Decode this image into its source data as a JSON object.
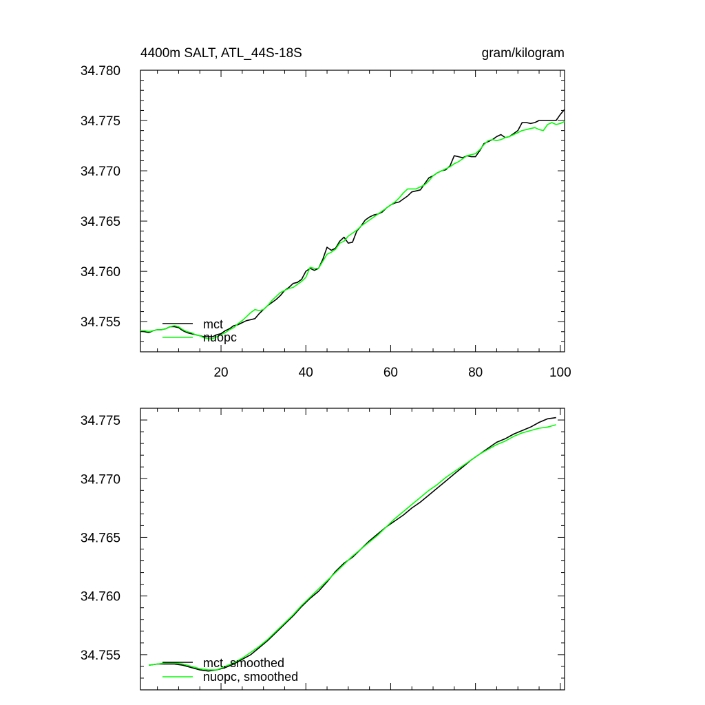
{
  "chart_data": [
    {
      "type": "line",
      "title": "4400m SALT, ATL_44S-18S",
      "units": "gram/kilogram",
      "xlim": [
        1,
        101
      ],
      "ylim": [
        34.752,
        34.78
      ],
      "xticks": [
        20,
        40,
        60,
        80,
        100
      ],
      "xtick_labels": [
        "20",
        "40",
        "60",
        "80",
        "100"
      ],
      "yticks": [
        34.755,
        34.76,
        34.765,
        34.77,
        34.775,
        34.78
      ],
      "ytick_labels": [
        "34.755",
        "34.760",
        "34.765",
        "34.770",
        "34.775",
        "34.780"
      ],
      "legend_location": "bottom-left",
      "x": [
        1,
        2,
        3,
        4,
        5,
        6,
        7,
        8,
        9,
        10,
        11,
        12,
        13,
        14,
        15,
        16,
        17,
        18,
        19,
        20,
        21,
        22,
        23,
        24,
        25,
        26,
        27,
        28,
        29,
        30,
        31,
        32,
        33,
        34,
        35,
        36,
        37,
        38,
        39,
        40,
        41,
        42,
        43,
        44,
        45,
        46,
        47,
        48,
        49,
        50,
        51,
        52,
        53,
        54,
        55,
        56,
        57,
        58,
        59,
        60,
        61,
        62,
        63,
        64,
        65,
        66,
        67,
        68,
        69,
        70,
        71,
        72,
        73,
        74,
        75,
        76,
        77,
        78,
        79,
        80,
        81,
        82,
        83,
        84,
        85,
        86,
        87,
        88,
        89,
        90,
        91,
        92,
        93,
        94,
        95,
        96,
        97,
        98,
        99,
        100,
        101
      ],
      "series": [
        {
          "name": "mct",
          "color": "#000000",
          "values": [
            34.7541,
            34.754,
            34.7539,
            34.7541,
            34.7542,
            34.7542,
            34.7543,
            34.7545,
            34.7545,
            34.7544,
            34.7541,
            34.7539,
            34.7538,
            34.7537,
            34.7536,
            34.7535,
            34.7535,
            34.7535,
            34.7537,
            34.7538,
            34.7541,
            34.7543,
            34.7546,
            34.7547,
            34.7549,
            34.7551,
            34.7552,
            34.7553,
            34.7558,
            34.7562,
            34.7566,
            34.7569,
            34.7572,
            34.7576,
            34.7581,
            34.7584,
            34.7588,
            34.7589,
            34.7592,
            34.76,
            34.7603,
            34.7601,
            34.7603,
            34.7612,
            34.7624,
            34.7621,
            34.7623,
            34.763,
            34.7634,
            34.7628,
            34.7629,
            34.764,
            34.7645,
            34.7651,
            34.7654,
            34.7656,
            34.7657,
            34.7659,
            34.7663,
            34.7666,
            34.7668,
            34.7669,
            34.7672,
            34.7675,
            34.7679,
            34.768,
            34.7681,
            34.7687,
            34.7693,
            34.7695,
            34.7698,
            34.77,
            34.7701,
            34.7705,
            34.7715,
            34.7714,
            34.7713,
            34.7715,
            34.7714,
            34.7714,
            34.772,
            34.7727,
            34.7729,
            34.7731,
            34.7734,
            34.7736,
            34.7733,
            34.7734,
            34.7737,
            34.774,
            34.7748,
            34.7748,
            34.7747,
            34.7748,
            34.775,
            34.775,
            34.775,
            34.775,
            34.775,
            34.7756,
            34.7761
          ]
        },
        {
          "name": "nuopc",
          "color": "#00ff00",
          "values": [
            34.7541,
            34.7541,
            34.754,
            34.7541,
            34.7542,
            34.7542,
            34.7543,
            34.7545,
            34.7546,
            34.7545,
            34.7542,
            34.754,
            34.7539,
            34.7537,
            34.7536,
            34.7534,
            34.7533,
            34.7533,
            34.7535,
            34.7537,
            34.7539,
            34.7542,
            34.7544,
            34.7548,
            34.7551,
            34.7555,
            34.7559,
            34.7562,
            34.7561,
            34.7562,
            34.7566,
            34.7571,
            34.7575,
            34.7579,
            34.7581,
            34.7583,
            34.7584,
            34.7587,
            34.759,
            34.7594,
            34.7604,
            34.7603,
            34.7603,
            34.761,
            34.7617,
            34.7619,
            34.7622,
            34.7628,
            34.763,
            34.7635,
            34.7638,
            34.7641,
            34.7645,
            34.7648,
            34.7651,
            34.7654,
            34.7657,
            34.766,
            34.7663,
            34.7666,
            34.7669,
            34.7673,
            34.7678,
            34.7682,
            34.7682,
            34.7682,
            34.7684,
            34.7686,
            34.769,
            34.7695,
            34.7698,
            34.77,
            34.7702,
            34.7704,
            34.7707,
            34.7709,
            34.7712,
            34.7715,
            34.7716,
            34.7717,
            34.7721,
            34.7726,
            34.773,
            34.7731,
            34.773,
            34.7731,
            34.7733,
            34.7734,
            34.7736,
            34.7738,
            34.774,
            34.7741,
            34.7742,
            34.7743,
            34.7741,
            34.774,
            34.7746,
            34.7748,
            34.7746,
            34.7747,
            34.7749
          ]
        }
      ]
    },
    {
      "type": "line",
      "xlim": [
        1,
        101
      ],
      "ylim": [
        34.752,
        34.776
      ],
      "xticks": [
        20,
        40,
        60,
        80,
        100
      ],
      "yticks": [
        34.755,
        34.76,
        34.765,
        34.77,
        34.775
      ],
      "ytick_labels": [
        "34.755",
        "34.760",
        "34.765",
        "34.770",
        "34.775"
      ],
      "legend_location": "bottom-left",
      "x": [
        3,
        5,
        7,
        9,
        11,
        13,
        15,
        17,
        19,
        21,
        23,
        25,
        27,
        29,
        31,
        33,
        35,
        37,
        39,
        41,
        43,
        45,
        47,
        49,
        51,
        53,
        55,
        57,
        59,
        61,
        63,
        65,
        67,
        69,
        71,
        73,
        75,
        77,
        79,
        81,
        83,
        85,
        87,
        89,
        91,
        93,
        95,
        97,
        99
      ],
      "series": [
        {
          "name": "mct, smoothed",
          "color": "#000000",
          "values": [
            34.7541,
            34.7542,
            34.7542,
            34.7542,
            34.7541,
            34.7539,
            34.7537,
            34.7536,
            34.7537,
            34.7539,
            34.7542,
            34.7546,
            34.755,
            34.7556,
            34.7562,
            34.7569,
            34.7576,
            34.7583,
            34.7591,
            34.7598,
            34.7604,
            34.7612,
            34.7621,
            34.7628,
            34.7633,
            34.764,
            34.7647,
            34.7653,
            34.7659,
            34.7664,
            34.7669,
            34.7675,
            34.768,
            34.7686,
            34.7692,
            34.7698,
            34.7704,
            34.771,
            34.7716,
            34.7721,
            34.7726,
            34.7731,
            34.7734,
            34.7738,
            34.7741,
            34.7744,
            34.7748,
            34.7751,
            34.7752
          ]
        },
        {
          "name": "nuopc, smoothed",
          "color": "#00ff00",
          "values": [
            34.7541,
            34.7542,
            34.7543,
            34.7543,
            34.7542,
            34.754,
            34.7538,
            34.7537,
            34.7537,
            34.754,
            34.7543,
            34.7547,
            34.7552,
            34.7557,
            34.7563,
            34.757,
            34.7577,
            34.7584,
            34.7592,
            34.7599,
            34.7606,
            34.7613,
            34.762,
            34.7627,
            34.7634,
            34.764,
            34.7646,
            34.7652,
            34.7659,
            34.7666,
            34.7672,
            34.7678,
            34.7684,
            34.769,
            34.7695,
            34.7701,
            34.7706,
            34.7711,
            34.7716,
            34.7721,
            34.7725,
            34.7729,
            34.7732,
            34.7736,
            34.7739,
            34.7741,
            34.7743,
            34.7744,
            34.7746
          ]
        }
      ]
    }
  ]
}
